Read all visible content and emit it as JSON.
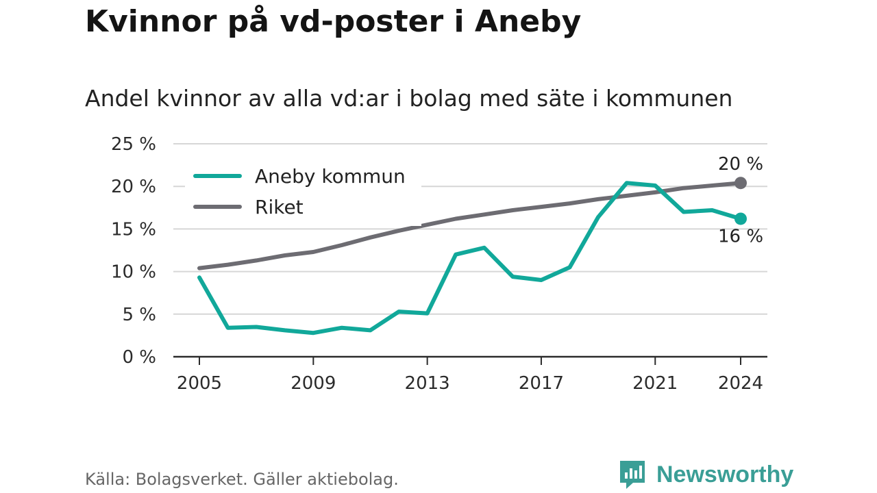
{
  "title": "Kvinnor på vd-poster i Aneby",
  "subtitle": "Andel kvinnor av alla vd:ar i bolag med säte i kommunen",
  "source": "Källa: Bolagsverket. Gäller aktiebolag.",
  "brand": {
    "name": "Newsworthy",
    "color": "#3a9e96"
  },
  "chart_data": {
    "type": "line",
    "x": [
      2005,
      2006,
      2007,
      2008,
      2009,
      2010,
      2011,
      2012,
      2013,
      2014,
      2015,
      2016,
      2017,
      2018,
      2019,
      2020,
      2021,
      2022,
      2023,
      2024
    ],
    "series": [
      {
        "name": "Aneby kommun",
        "color": "#11a89a",
        "values": [
          9.3,
          3.4,
          3.5,
          3.1,
          2.8,
          3.4,
          3.1,
          5.3,
          5.1,
          12.0,
          12.8,
          9.4,
          9.0,
          10.5,
          16.4,
          20.4,
          20.1,
          17.0,
          17.2,
          16.2
        ],
        "end_label": "16 %"
      },
      {
        "name": "Riket",
        "color": "#6d6c72",
        "values": [
          10.4,
          10.8,
          11.3,
          11.9,
          12.3,
          13.1,
          14.0,
          14.8,
          15.5,
          16.2,
          16.7,
          17.2,
          17.6,
          18.0,
          18.5,
          18.9,
          19.3,
          19.8,
          20.1,
          20.4
        ],
        "end_label": "20 %"
      }
    ],
    "x_ticks": [
      2005,
      2009,
      2013,
      2017,
      2021,
      2024
    ],
    "x_tick_labels": [
      "2005",
      "2009",
      "2013",
      "2017",
      "2021",
      "2024"
    ],
    "y_ticks": [
      0,
      5,
      10,
      15,
      20,
      25
    ],
    "y_tick_labels": [
      "0 %",
      "5 %",
      "10 %",
      "15 %",
      "20 %",
      "25 %"
    ],
    "xlim": [
      2005,
      2024
    ],
    "ylim": [
      0,
      25
    ],
    "grid": true,
    "legend": "top-left"
  }
}
